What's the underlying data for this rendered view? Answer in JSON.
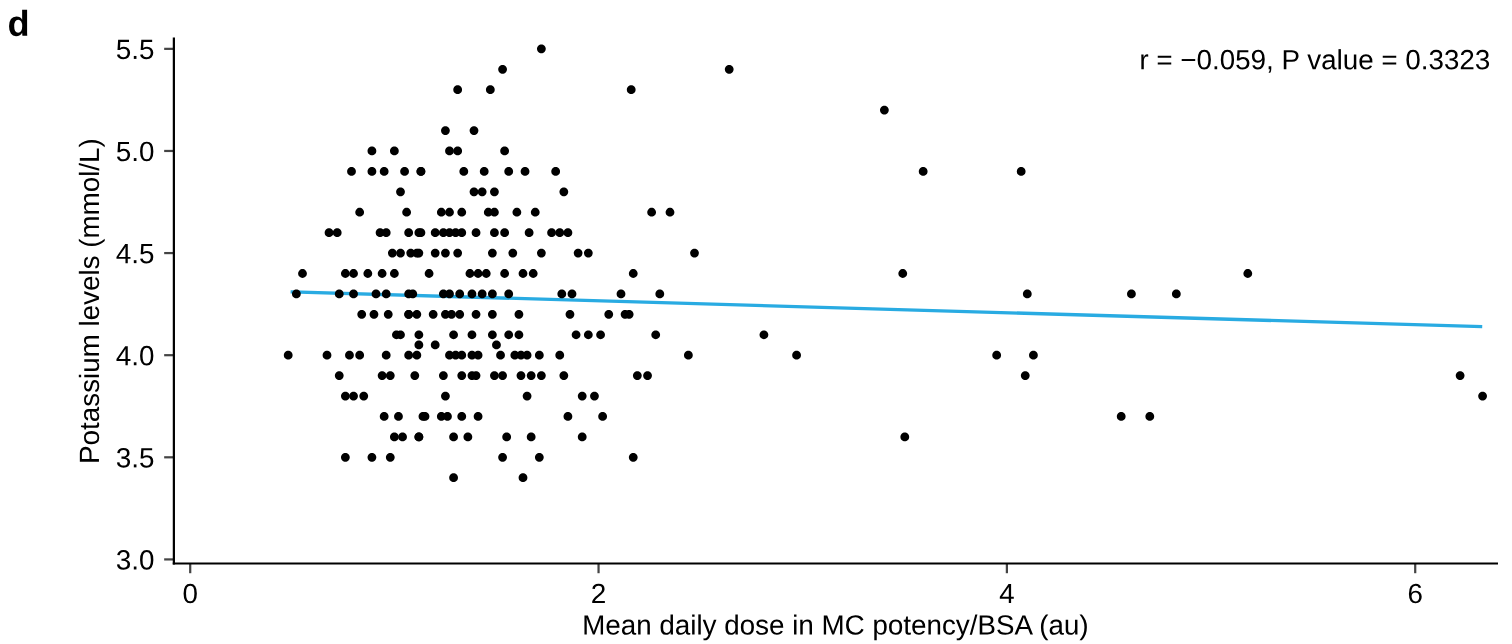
{
  "chart_data": {
    "type": "scatter",
    "title": "d",
    "xlabel": "Mean daily dose in MC potency/BSA (au)",
    "ylabel": "Potassium levels (mmol/L)",
    "annotations": [
      "r = −0.059, P value = 0.3323"
    ],
    "xlim": [
      -0.08,
      6.4
    ],
    "ylim": [
      2.98,
      5.55
    ],
    "xticks": [
      0,
      2,
      4,
      6
    ],
    "yticks": [
      {
        "value": 3,
        "label": "3.0"
      },
      3.5,
      {
        "value": 4,
        "label": "4.0"
      },
      4.5,
      {
        "value": 5,
        "label": "5.0"
      },
      5.5
    ],
    "grid": false,
    "legend": false,
    "series": [
      {
        "color": "#000000",
        "marker": "circle",
        "x": [
          2.16,
          2.64,
          3.4,
          3.59,
          4.07,
          2.26,
          2.35,
          2.47,
          2.17,
          3.49,
          5.18,
          2.3,
          4.1,
          4.61,
          4.83,
          2.15,
          2.28,
          2.81,
          2.44,
          2.97,
          3.95,
          4.13,
          2.19,
          2.24,
          4.09,
          6.22,
          6.33,
          4.56,
          4.7,
          3.5,
          2.17,
          1.72,
          1.53,
          1.47,
          1.31,
          1.25,
          1.39,
          1.27,
          1.31,
          1.54,
          1.13,
          1.34,
          1.44,
          1.56,
          1.64,
          1.79,
          1.39,
          1.43,
          1.49,
          1.83,
          1.23,
          1.27,
          1.33,
          1.46,
          1.49,
          1.6,
          1.69,
          1.12,
          1.2,
          1.24,
          1.27,
          1.3,
          1.33,
          1.4,
          1.49,
          1.54,
          1.66,
          1.77,
          1.81,
          1.85,
          1.11,
          1.2,
          1.25,
          1.31,
          1.48,
          1.58,
          1.72,
          1.9,
          1.95,
          1.17,
          1.37,
          1.41,
          1.45,
          1.54,
          1.63,
          1.68,
          1.07,
          1.24,
          1.27,
          1.32,
          1.38,
          1.43,
          1.48,
          1.56,
          1.82,
          1.87,
          2.11,
          1.07,
          1.19,
          1.25,
          1.28,
          1.32,
          1.4,
          1.48,
          1.61,
          1.86,
          2.05,
          2.13,
          1.29,
          1.38,
          1.48,
          1.56,
          1.61,
          1.89,
          1.95,
          2.01,
          1.12,
          1.2,
          1.5,
          1.27,
          1.3,
          1.33,
          1.38,
          1.41,
          1.52,
          1.59,
          1.62,
          1.65,
          1.71,
          1.81,
          1.24,
          1.33,
          1.38,
          1.4,
          1.49,
          1.53,
          1.62,
          1.67,
          1.72,
          1.83,
          1.25,
          1.65,
          1.92,
          1.98,
          1.15,
          1.23,
          1.26,
          1.33,
          1.41,
          1.85,
          2.02,
          1.12,
          1.29,
          1.36,
          1.55,
          1.67,
          1.92,
          1.53,
          1.71,
          1.29,
          1.63,
          0.89,
          1.0,
          0.79,
          0.89,
          0.95,
          1.05,
          1.13,
          1.03,
          0.83,
          1.06,
          0.72,
          0.93,
          0.96,
          1.07,
          1.13,
          0.68,
          0.99,
          1.03,
          1.08,
          1.12,
          0.55,
          0.76,
          0.8,
          0.87,
          0.94,
          1.0,
          0.52,
          0.73,
          0.8,
          0.91,
          0.96,
          1.09,
          0.84,
          0.9,
          0.97,
          1.07,
          1.11,
          1.01,
          1.03,
          1.12,
          0.48,
          0.67,
          0.78,
          0.83,
          0.96,
          1.07,
          1.11,
          0.73,
          0.94,
          0.98,
          1.1,
          0.76,
          0.8,
          0.85,
          0.95,
          1.02,
          1.14,
          1.0,
          1.04,
          1.12,
          0.76,
          0.89,
          0.98
        ],
        "values": [
          5.3,
          5.4,
          5.2,
          4.9,
          4.9,
          4.7,
          4.7,
          4.5,
          4.4,
          4.4,
          4.4,
          4.3,
          4.3,
          4.3,
          4.3,
          4.2,
          4.1,
          4.1,
          4.0,
          4.0,
          4.0,
          4.0,
          3.9,
          3.9,
          3.9,
          3.9,
          3.8,
          3.7,
          3.7,
          3.6,
          3.5,
          5.5,
          5.4,
          5.3,
          5.3,
          5.1,
          5.1,
          5.0,
          5.0,
          5.0,
          4.9,
          4.9,
          4.9,
          4.9,
          4.9,
          4.9,
          4.8,
          4.8,
          4.8,
          4.8,
          4.7,
          4.7,
          4.7,
          4.7,
          4.7,
          4.7,
          4.7,
          4.6,
          4.6,
          4.6,
          4.6,
          4.6,
          4.6,
          4.6,
          4.6,
          4.6,
          4.6,
          4.6,
          4.6,
          4.6,
          4.5,
          4.5,
          4.5,
          4.5,
          4.5,
          4.5,
          4.5,
          4.5,
          4.5,
          4.4,
          4.4,
          4.4,
          4.4,
          4.4,
          4.4,
          4.4,
          4.3,
          4.3,
          4.3,
          4.3,
          4.3,
          4.3,
          4.3,
          4.3,
          4.3,
          4.3,
          4.3,
          4.2,
          4.2,
          4.2,
          4.2,
          4.2,
          4.2,
          4.2,
          4.2,
          4.2,
          4.2,
          4.2,
          4.1,
          4.1,
          4.1,
          4.1,
          4.1,
          4.1,
          4.1,
          4.1,
          4.05,
          4.05,
          4.05,
          4.0,
          4.0,
          4.0,
          4.0,
          4.0,
          4.0,
          4.0,
          4.0,
          4.0,
          4.0,
          4.0,
          3.9,
          3.9,
          3.9,
          3.9,
          3.9,
          3.9,
          3.9,
          3.9,
          3.9,
          3.9,
          3.8,
          3.8,
          3.8,
          3.8,
          3.7,
          3.7,
          3.7,
          3.7,
          3.7,
          3.7,
          3.7,
          3.6,
          3.6,
          3.6,
          3.6,
          3.6,
          3.6,
          3.5,
          3.5,
          3.4,
          3.4,
          5.0,
          5.0,
          4.9,
          4.9,
          4.9,
          4.9,
          4.9,
          4.8,
          4.7,
          4.7,
          4.6,
          4.6,
          4.6,
          4.6,
          4.6,
          4.6,
          4.5,
          4.5,
          4.5,
          4.5,
          4.4,
          4.4,
          4.4,
          4.4,
          4.4,
          4.4,
          4.3,
          4.3,
          4.3,
          4.3,
          4.3,
          4.3,
          4.2,
          4.2,
          4.2,
          4.2,
          4.2,
          4.1,
          4.1,
          4.1,
          4.0,
          4.0,
          4.0,
          4.0,
          4.0,
          4.0,
          4.0,
          3.9,
          3.9,
          3.9,
          3.9,
          3.8,
          3.8,
          3.8,
          3.7,
          3.7,
          3.7,
          3.6,
          3.6,
          3.6,
          3.5,
          3.5,
          3.5
        ]
      },
      {
        "type": "line",
        "color": "#29abe2",
        "marker": "none",
        "x": [
          0.5,
          6.32
        ],
        "values": [
          4.31,
          4.14
        ]
      }
    ]
  }
}
